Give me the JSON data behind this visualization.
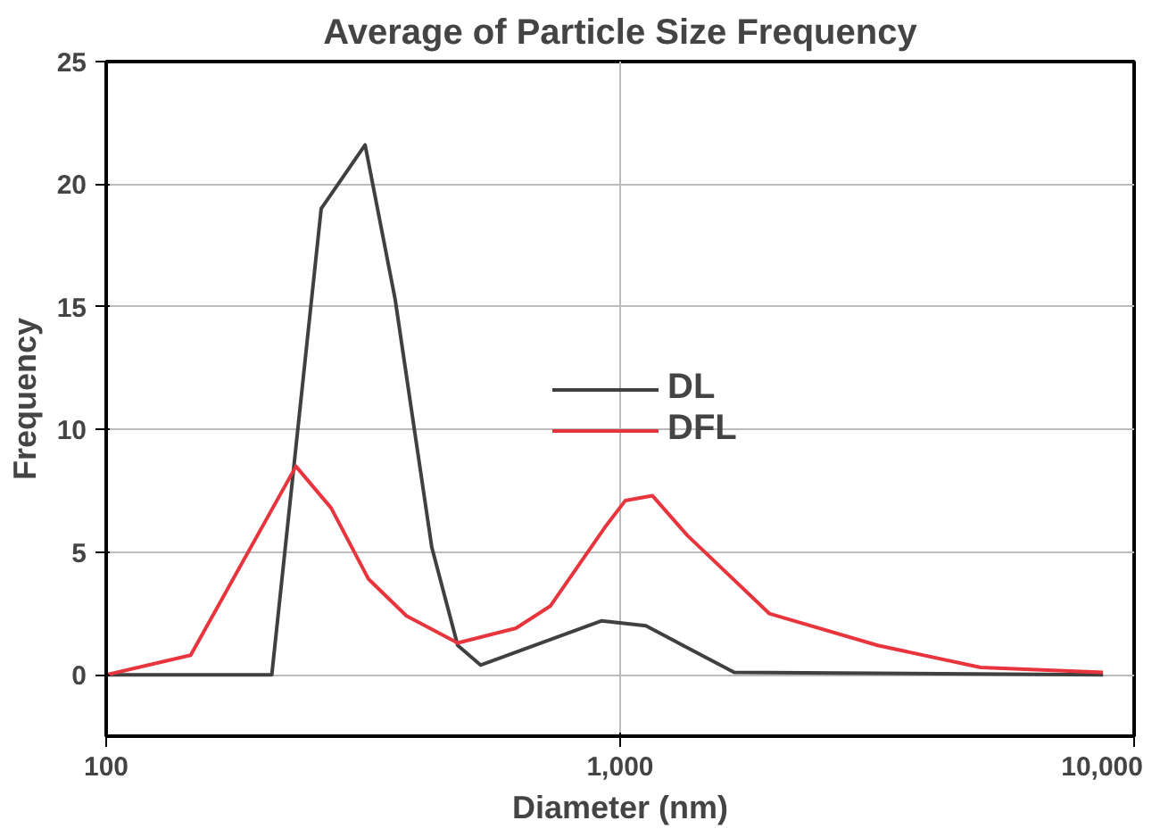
{
  "chart_data": {
    "type": "line",
    "title": "Average of Particle Size Frequency",
    "xlabel": "Diameter (nm)",
    "ylabel": "Frequency",
    "log": "x",
    "xlim": [
      100,
      10000
    ],
    "ylim": [
      -2.5,
      25
    ],
    "xticks": [
      100,
      {
        "value": 1000,
        "label": "1,000"
      },
      {
        "value": 10000,
        "label": "10,000"
      }
    ],
    "yticks": [
      0,
      5,
      10,
      15,
      20,
      25
    ],
    "grid": true,
    "legend": "right",
    "line_style": "solid",
    "marker": "none",
    "series": [
      {
        "name": "DL",
        "color": "#404040",
        "x": [
          100,
          210,
          262,
          319,
          365,
          430,
          483,
          535,
          919,
          1122,
          1667,
          8700
        ],
        "values": [
          0,
          0,
          19.0,
          21.6,
          15.3,
          5.2,
          1.2,
          0.4,
          2.2,
          2.0,
          0.1,
          0
        ]
      },
      {
        "name": "DFL",
        "color": "#e8343c",
        "x": [
          100,
          146,
          234,
          274,
          324,
          384,
          483,
          627,
          731,
          933,
          1023,
          1156,
          1349,
          1950,
          3170,
          5030,
          8700
        ],
        "values": [
          0,
          0.8,
          8.5,
          6.8,
          3.9,
          2.4,
          1.3,
          1.9,
          2.8,
          6.0,
          7.1,
          7.3,
          5.7,
          2.5,
          1.2,
          0.3,
          0.1
        ]
      }
    ]
  }
}
